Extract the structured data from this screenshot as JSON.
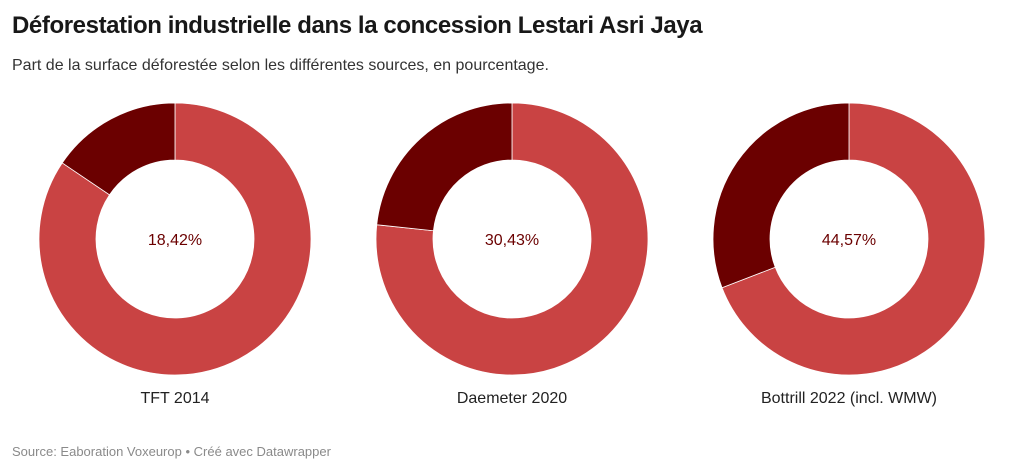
{
  "title": "Déforestation industrielle dans la concession Lestari Asri Jaya",
  "subtitle": "Part de la surface déforestée selon les différentes sources, en pourcentage.",
  "footer": {
    "source": "Source: Eaboration Voxeurop",
    "separator": "•",
    "credit": "Créé avec Datawrapper"
  },
  "colors": {
    "deforested": "#6b0000",
    "rest": "#c94343",
    "label": "#6b0000"
  },
  "chart_data": {
    "type": "pie",
    "variant": "donut",
    "title": "Déforestation industrielle dans la concession Lestari Asri Jaya",
    "subtitle": "Part de la surface déforestée selon les différentes sources, en pourcentage.",
    "donuts": [
      {
        "category": "TFT 2014",
        "value": 18.42,
        "label": "18,42%",
        "other": 100
      },
      {
        "category": "Daemeter 2020",
        "value": 30.43,
        "label": "30,43%",
        "other": 100
      },
      {
        "category": "Bottrill 2022 (incl. WMW)",
        "value": 44.57,
        "label": "44,57%",
        "other": 100
      }
    ]
  }
}
